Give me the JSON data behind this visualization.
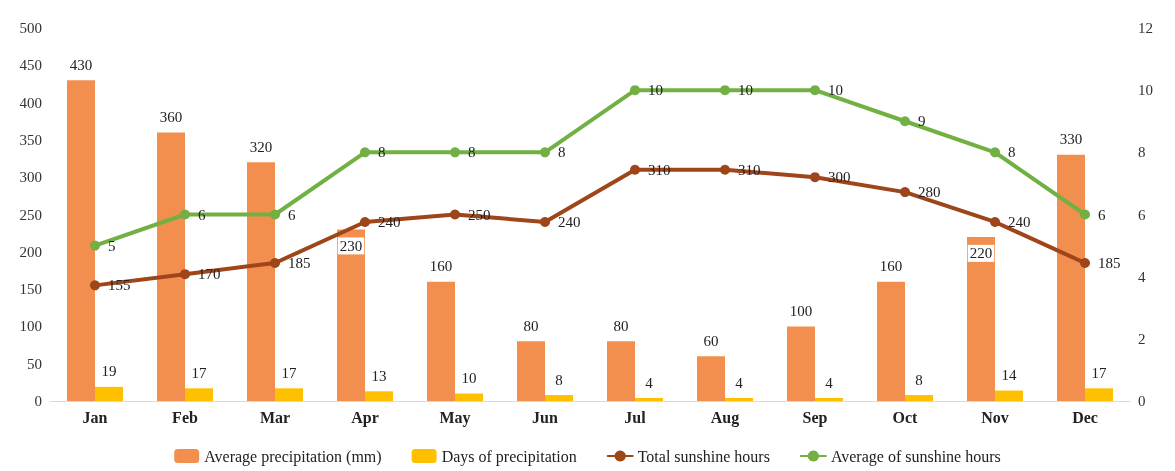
{
  "chart_data": {
    "type": "bar",
    "categories": [
      "Jan",
      "Feb",
      "Mar",
      "Apr",
      "May",
      "Jun",
      "Jul",
      "Aug",
      "Sep",
      "Oct",
      "Nov",
      "Dec"
    ],
    "series": [
      {
        "name": "Average precipitation (mm)",
        "color": "#f28f4f",
        "values": [
          430,
          360,
          320,
          230,
          160,
          80,
          80,
          60,
          100,
          160,
          220,
          330
        ]
      },
      {
        "name": "Days of precipitation",
        "color": "#ffc000",
        "values": [
          19,
          17,
          17,
          13,
          10,
          8,
          4,
          4,
          4,
          8,
          14,
          17
        ]
      },
      {
        "name": "Total sunshine hours",
        "type": "line",
        "color": "#9e4519",
        "values": [
          155,
          170,
          185,
          240,
          250,
          240,
          310,
          310,
          300,
          280,
          240,
          185
        ]
      },
      {
        "name": "Average of sunshine hours",
        "type": "line",
        "axis": "y2",
        "color": "#72b043",
        "values": [
          5,
          6,
          6,
          8,
          8,
          8,
          10,
          10,
          10,
          9,
          8,
          6
        ]
      }
    ],
    "ylim": [
      0,
      500
    ],
    "yticks": [
      0,
      50,
      100,
      150,
      200,
      250,
      300,
      350,
      400,
      450,
      500
    ],
    "y2lim": [
      0,
      12
    ],
    "y2ticks": [
      0,
      2,
      4,
      6,
      8,
      10,
      12
    ],
    "data_labels": true,
    "grid": false,
    "legend": "bottom",
    "marker": "circle",
    "line_style": "solid"
  }
}
